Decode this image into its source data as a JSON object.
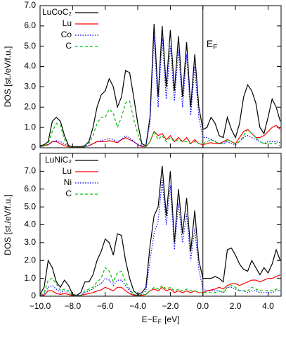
{
  "chart_data": [
    {
      "type": "line",
      "ylabel": "DOS [st./eV/f.u.]",
      "ef_label": {
        "text": "E",
        "sub": "F"
      },
      "vline": 0,
      "xlim": [
        -10,
        4.8
      ],
      "ylim": [
        0,
        7
      ],
      "yticks": [
        0,
        {
          "value": 1,
          "label": "1.0"
        },
        {
          "value": 2,
          "label": "2.0"
        },
        {
          "value": 3,
          "label": "3.0"
        },
        {
          "value": 4,
          "label": "4.0"
        },
        {
          "value": 5,
          "label": "5.0"
        },
        {
          "value": 6,
          "label": "6.0"
        },
        {
          "value": 7,
          "label": "7.0"
        }
      ],
      "x": [
        -10,
        -9.75,
        -9.5,
        -9.25,
        -9,
        -8.75,
        -8.5,
        -8.25,
        -8,
        -7.75,
        -7.5,
        -7.25,
        -7,
        -6.75,
        -6.5,
        -6.25,
        -6,
        -5.75,
        -5.5,
        -5.25,
        -5,
        -4.75,
        -4.5,
        -4.25,
        -4,
        -3.75,
        -3.5,
        -3.25,
        -3,
        -2.75,
        -2.5,
        -2.25,
        -2,
        -1.75,
        -1.5,
        -1.25,
        -1,
        -0.75,
        -0.5,
        -0.25,
        0,
        0.25,
        0.5,
        0.75,
        1,
        1.25,
        1.5,
        1.75,
        2,
        2.25,
        2.5,
        2.75,
        3,
        3.25,
        3.5,
        3.75,
        4,
        4.25,
        4.5,
        4.75
      ],
      "series": [
        {
          "name": "LuCoC₂",
          "color": "#000000",
          "style": "solid",
          "values": [
            0.1,
            0.15,
            0.3,
            1.3,
            1.5,
            1.3,
            0.6,
            0.1,
            0.05,
            0.05,
            0.05,
            0.1,
            0.3,
            1.0,
            2.0,
            2.6,
            2.8,
            3.4,
            3.0,
            2.0,
            2.5,
            3.8,
            3.7,
            2.5,
            1.2,
            0.2,
            0.1,
            1.5,
            6.1,
            2.5,
            6.0,
            3.0,
            5.8,
            2.8,
            5.5,
            2.5,
            5.2,
            2.0,
            4.6,
            2.0,
            0.9,
            1.0,
            1.5,
            1.2,
            0.6,
            0.5,
            1.5,
            0.9,
            0.5,
            1.2,
            2.5,
            3.1,
            2.8,
            2.2,
            1.0,
            0.7,
            1.5,
            2.4,
            2.0,
            1.3
          ]
        },
        {
          "name": "Lu",
          "color": "#ff0000",
          "style": "solid",
          "values": [
            0.05,
            0.1,
            0.15,
            0.3,
            0.3,
            0.2,
            0.1,
            0.05,
            0.02,
            0.02,
            0.02,
            0.05,
            0.1,
            0.2,
            0.3,
            0.3,
            0.3,
            0.35,
            0.3,
            0.25,
            0.4,
            0.5,
            0.4,
            0.3,
            0.15,
            0.05,
            0.05,
            0.3,
            0.8,
            0.6,
            0.7,
            0.4,
            0.6,
            0.3,
            0.5,
            0.3,
            0.5,
            0.2,
            0.4,
            0.2,
            0.15,
            0.2,
            0.25,
            0.2,
            0.2,
            0.3,
            0.4,
            0.3,
            0.2,
            0.5,
            0.8,
            0.9,
            0.7,
            0.5,
            0.5,
            0.6,
            0.8,
            1.0,
            1.1,
            0.9
          ]
        },
        {
          "name": "Co",
          "color": "#0000ff",
          "style": "dotted",
          "values": [
            0.05,
            0.1,
            0.15,
            0.3,
            0.35,
            0.3,
            0.2,
            0.05,
            0.02,
            0.02,
            0.02,
            0.05,
            0.1,
            0.2,
            0.3,
            0.35,
            0.4,
            0.45,
            0.4,
            0.3,
            0.4,
            0.6,
            0.5,
            0.3,
            0.15,
            0.1,
            0.1,
            1.2,
            5.5,
            2.0,
            5.4,
            2.4,
            5.0,
            2.3,
            4.8,
            2.0,
            4.6,
            1.6,
            4.0,
            1.5,
            0.5,
            0.5,
            0.4,
            0.3,
            0.2,
            0.2,
            0.3,
            0.2,
            0.15,
            0.3,
            0.5,
            0.6,
            0.5,
            0.4,
            0.3,
            0.2,
            0.3,
            0.3,
            0.3,
            0.25
          ]
        },
        {
          "name": "C",
          "color": "#00c000",
          "style": "dashed",
          "values": [
            0.05,
            0.1,
            0.2,
            0.8,
            1.2,
            1.1,
            0.4,
            0.05,
            0.02,
            0.02,
            0.02,
            0.05,
            0.2,
            0.6,
            1.2,
            1.5,
            1.5,
            1.9,
            1.7,
            1.0,
            1.5,
            2.2,
            2.3,
            1.4,
            0.7,
            0.1,
            0.05,
            0.3,
            0.8,
            0.4,
            0.6,
            0.3,
            0.5,
            0.3,
            0.4,
            0.3,
            0.3,
            0.2,
            0.3,
            0.2,
            0.2,
            0.3,
            0.4,
            0.3,
            0.2,
            0.2,
            0.4,
            0.3,
            0.2,
            0.3,
            0.6,
            0.9,
            0.7,
            0.5,
            0.3,
            0.2,
            0.2,
            0.2,
            0.2,
            0.1
          ]
        }
      ]
    },
    {
      "type": "line",
      "ylabel": "DOS [st./eV/f.u.]",
      "xlabel": {
        "text": "E−E",
        "sub": "F",
        "unit": "[eV]"
      },
      "vline": 0,
      "xlim": [
        -10,
        4.8
      ],
      "ylim": [
        0,
        8
      ],
      "xticks": [
        {
          "value": -10,
          "label": "−10.0"
        },
        {
          "value": -8,
          "label": "−8.0"
        },
        {
          "value": -6,
          "label": "−6.0"
        },
        {
          "value": -4,
          "label": "−4.0"
        },
        {
          "value": -2,
          "label": "−2.0"
        },
        {
          "value": 0,
          "label": "0.0"
        },
        {
          "value": 2,
          "label": "2.0"
        },
        {
          "value": 4,
          "label": "4.0"
        }
      ],
      "yticks": [
        0,
        {
          "value": 1,
          "label": "1.0"
        },
        {
          "value": 2,
          "label": "2.0"
        },
        {
          "value": 3,
          "label": "3.0"
        },
        {
          "value": 4,
          "label": "4.0"
        },
        {
          "value": 5,
          "label": "5.0"
        },
        {
          "value": 6,
          "label": "6.0"
        },
        {
          "value": 7,
          "label": "7.0"
        }
      ],
      "x": [
        -10,
        -9.75,
        -9.5,
        -9.25,
        -9,
        -8.75,
        -8.5,
        -8.25,
        -8,
        -7.75,
        -7.5,
        -7.25,
        -7,
        -6.75,
        -6.5,
        -6.25,
        -6,
        -5.75,
        -5.5,
        -5.25,
        -5,
        -4.75,
        -4.5,
        -4.25,
        -4,
        -3.75,
        -3.5,
        -3.25,
        -3,
        -2.75,
        -2.5,
        -2.25,
        -2,
        -1.75,
        -1.5,
        -1.25,
        -1,
        -0.75,
        -0.5,
        -0.25,
        0,
        0.25,
        0.5,
        0.75,
        1,
        1.25,
        1.5,
        1.75,
        2,
        2.25,
        2.5,
        2.75,
        3,
        3.25,
        3.5,
        3.75,
        4,
        4.25,
        4.5,
        4.75
      ],
      "series": [
        {
          "name": "LuNiC₂",
          "color": "#000000",
          "style": "solid",
          "values": [
            0.1,
            0.5,
            2.0,
            1.6,
            0.8,
            0.5,
            0.9,
            0.6,
            0.1,
            0.05,
            0.2,
            0.8,
            0.8,
            1.2,
            2.0,
            2.5,
            3.2,
            3.0,
            2.3,
            3.5,
            3.4,
            2.0,
            1.0,
            0.3,
            0.1,
            0.2,
            0.5,
            2.8,
            4.5,
            5.0,
            7.3,
            4.5,
            7.0,
            3.0,
            6.0,
            3.5,
            5.5,
            2.5,
            4.8,
            2.0,
            1.0,
            1.0,
            1.0,
            1.1,
            1.0,
            0.8,
            2.6,
            2.7,
            2.3,
            1.8,
            1.5,
            1.4,
            2.0,
            1.6,
            1.2,
            1.6,
            1.3,
            1.8,
            2.6,
            2.0
          ]
        },
        {
          "name": "Lu",
          "color": "#ff0000",
          "style": "solid",
          "values": [
            0.02,
            0.05,
            0.3,
            0.3,
            0.15,
            0.1,
            0.15,
            0.1,
            0.02,
            0.02,
            0.05,
            0.1,
            0.15,
            0.2,
            0.3,
            0.35,
            0.5,
            0.4,
            0.3,
            0.5,
            0.5,
            0.3,
            0.15,
            0.05,
            0.02,
            0.05,
            0.1,
            0.3,
            0.4,
            0.3,
            0.5,
            0.3,
            0.4,
            0.2,
            0.3,
            0.2,
            0.3,
            0.2,
            0.3,
            0.2,
            0.2,
            0.3,
            0.35,
            0.4,
            0.5,
            0.4,
            0.6,
            0.7,
            0.7,
            0.6,
            0.7,
            0.8,
            0.9,
            0.9,
            0.8,
            0.9,
            1.0,
            1.0,
            1.1,
            1.2
          ]
        },
        {
          "name": "Ni",
          "color": "#0000ff",
          "style": "dotted",
          "values": [
            0.05,
            0.1,
            0.5,
            0.6,
            0.4,
            0.2,
            0.3,
            0.2,
            0.05,
            0.02,
            0.05,
            0.2,
            0.3,
            0.4,
            0.6,
            0.7,
            1.0,
            0.9,
            0.6,
            0.9,
            0.9,
            0.6,
            0.3,
            0.1,
            0.05,
            0.1,
            0.3,
            2.0,
            3.5,
            4.2,
            6.5,
            4.0,
            6.2,
            2.6,
            5.2,
            3.0,
            4.6,
            2.0,
            3.8,
            1.5,
            0.4,
            0.3,
            0.3,
            0.3,
            0.3,
            0.2,
            0.5,
            0.5,
            0.4,
            0.3,
            0.3,
            0.2,
            0.3,
            0.3,
            0.2,
            0.2,
            0.2,
            0.2,
            0.3,
            0.3
          ]
        },
        {
          "name": "C",
          "color": "#00c000",
          "style": "dashed",
          "values": [
            0.05,
            0.2,
            0.9,
            1.0,
            0.7,
            0.3,
            0.4,
            0.3,
            0.05,
            0.02,
            0.05,
            0.3,
            0.4,
            0.5,
            0.8,
            1.0,
            1.6,
            1.4,
            0.8,
            1.3,
            1.4,
            0.8,
            0.4,
            0.1,
            0.05,
            0.1,
            0.1,
            0.3,
            0.5,
            0.4,
            0.6,
            0.4,
            0.5,
            0.3,
            0.4,
            0.3,
            0.4,
            0.3,
            0.3,
            0.2,
            0.2,
            0.2,
            0.2,
            0.2,
            0.3,
            0.2,
            0.5,
            0.6,
            0.5,
            0.3,
            0.3,
            0.3,
            0.5,
            0.4,
            0.3,
            0.3,
            0.3,
            0.3,
            0.4,
            0.3
          ]
        }
      ]
    }
  ]
}
